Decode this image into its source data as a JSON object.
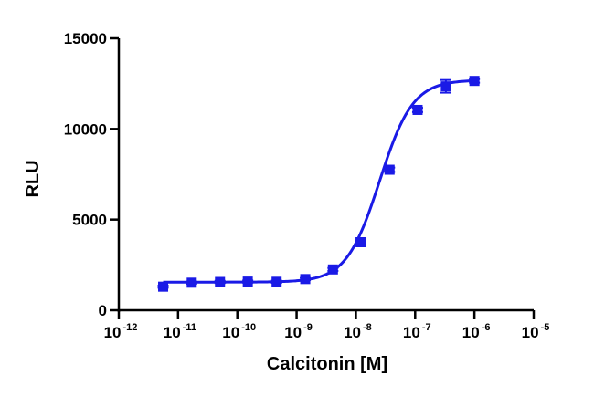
{
  "chart_data": {
    "type": "scatter",
    "title": "",
    "xlabel": "Calcitonin [M]",
    "ylabel": "RLU",
    "x_scale": "log",
    "xlim": [
      1e-12,
      1e-05
    ],
    "ylim": [
      0,
      15000
    ],
    "x_ticks": [
      {
        "base": "10",
        "exp": "-12",
        "value": 1e-12
      },
      {
        "base": "10",
        "exp": "-11",
        "value": 1e-11
      },
      {
        "base": "10",
        "exp": "-10",
        "value": 1e-10
      },
      {
        "base": "10",
        "exp": "-9",
        "value": 1e-09
      },
      {
        "base": "10",
        "exp": "-8",
        "value": 1e-08
      },
      {
        "base": "10",
        "exp": "-7",
        "value": 1e-07
      },
      {
        "base": "10",
        "exp": "-6",
        "value": 1e-06
      },
      {
        "base": "10",
        "exp": "-5",
        "value": 1e-05
      }
    ],
    "y_ticks": [
      {
        "label": "0",
        "value": 0
      },
      {
        "label": "5000",
        "value": 5000
      },
      {
        "label": "10000",
        "value": 10000
      },
      {
        "label": "15000",
        "value": 15000
      }
    ],
    "grid": false,
    "legend": "none",
    "color": "#1a1ae6",
    "marker": "square",
    "fit_curve": {
      "type": "4PL",
      "bottom": 1550,
      "top": 12700,
      "log_ec50": -7.6,
      "hill": 1.55
    },
    "points": [
      {
        "x": 5.6e-12,
        "y": 1300,
        "err": 60
      },
      {
        "x": 1.7e-11,
        "y": 1520,
        "err": 60
      },
      {
        "x": 5.1e-11,
        "y": 1560,
        "err": 60
      },
      {
        "x": 1.5e-10,
        "y": 1580,
        "err": 60
      },
      {
        "x": 4.6e-10,
        "y": 1570,
        "err": 60
      },
      {
        "x": 1.4e-09,
        "y": 1720,
        "err": 60
      },
      {
        "x": 4.1e-09,
        "y": 2250,
        "err": 80
      },
      {
        "x": 1.2e-08,
        "y": 3750,
        "err": 100
      },
      {
        "x": 3.7e-08,
        "y": 7750,
        "err": 120
      },
      {
        "x": 1.1e-07,
        "y": 11050,
        "err": 120
      },
      {
        "x": 3.3e-07,
        "y": 12350,
        "err": 350
      },
      {
        "x": 1e-06,
        "y": 12650,
        "err": 100
      }
    ]
  }
}
